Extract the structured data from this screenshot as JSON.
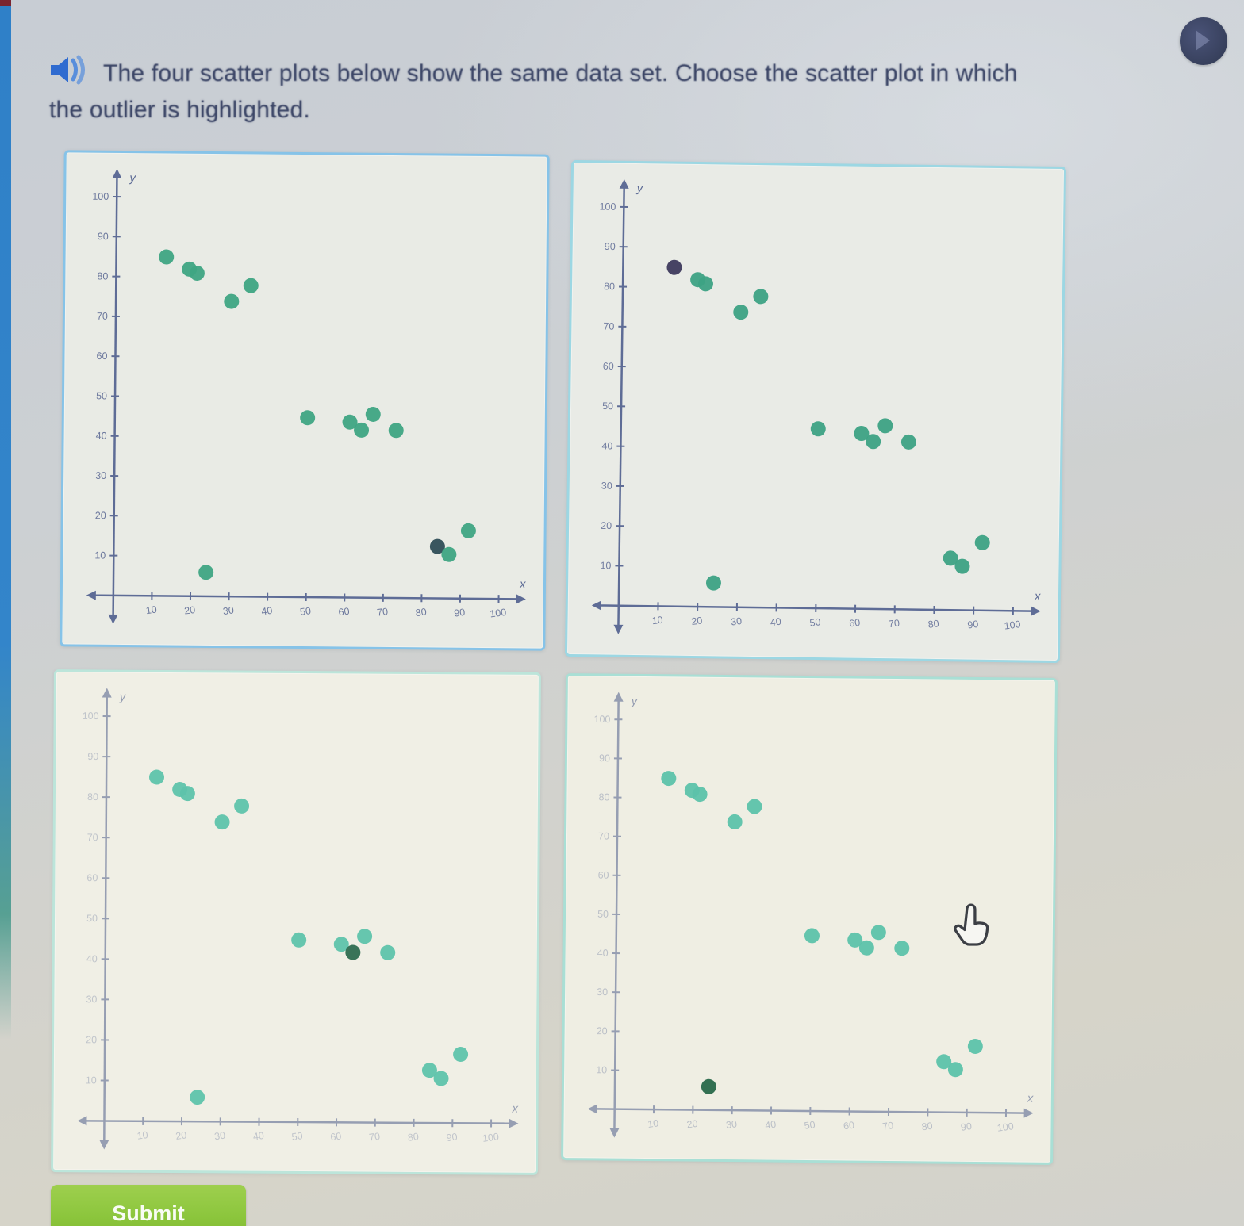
{
  "header": {
    "question_line1": "The four scatter plots below show the same data set. Choose the scatter plot in which",
    "question_line2": "the outlier is highlighted.",
    "audio_icon": "speaker-icon",
    "avatar_icon": "account-circle-icon"
  },
  "footer": {
    "submit_label": "Submit"
  },
  "cursor": {
    "icon": "hand-pointer-icon"
  },
  "colors": {
    "question_text": "#3b4566",
    "left_strip_blue": "#3385ca",
    "submit_green": "#8cc63d",
    "avatar_navy": "#39425f"
  },
  "chart_data": [
    {
      "id": "plot-top-left",
      "type": "scatter",
      "title": "",
      "xlabel": "x",
      "ylabel": "y",
      "xlim": [
        0,
        105
      ],
      "ylim": [
        0,
        105
      ],
      "grid": false,
      "legend": "none",
      "xticks": [
        10,
        20,
        30,
        40,
        50,
        60,
        70,
        80,
        90,
        100
      ],
      "yticks": [
        10,
        20,
        30,
        40,
        50,
        60,
        70,
        80,
        90,
        100
      ],
      "points": [
        [
          13,
          85
        ],
        [
          19,
          82
        ],
        [
          21,
          81
        ],
        [
          30,
          74
        ],
        [
          35,
          78
        ],
        [
          50,
          45
        ],
        [
          61,
          44
        ],
        [
          64,
          42
        ],
        [
          67,
          46
        ],
        [
          73,
          42
        ],
        [
          24,
          6
        ],
        [
          84,
          13
        ],
        [
          87,
          11
        ],
        [
          92,
          17
        ]
      ],
      "outlier_point": [
        24,
        6
      ],
      "highlighted_index": 11,
      "highlighted_point": [
        84,
        13
      ],
      "point_color": "#3fa583",
      "highlight_color": "#2f4e57",
      "axis_color": "#5e6c96",
      "tick_label_color": "#67739a",
      "tick_label_opacity": 0.95,
      "background": "#e9ebe5",
      "border_color": "#86c3e8"
    },
    {
      "id": "plot-top-right",
      "type": "scatter",
      "title": "",
      "xlabel": "x",
      "ylabel": "y",
      "xlim": [
        0,
        105
      ],
      "ylim": [
        0,
        105
      ],
      "grid": false,
      "legend": "none",
      "xticks": [
        10,
        20,
        30,
        40,
        50,
        60,
        70,
        80,
        90,
        100
      ],
      "yticks": [
        10,
        20,
        30,
        40,
        50,
        60,
        70,
        80,
        90,
        100
      ],
      "points": [
        [
          13,
          85
        ],
        [
          19,
          82
        ],
        [
          21,
          81
        ],
        [
          30,
          74
        ],
        [
          35,
          78
        ],
        [
          50,
          45
        ],
        [
          61,
          44
        ],
        [
          64,
          42
        ],
        [
          67,
          46
        ],
        [
          73,
          42
        ],
        [
          24,
          6
        ],
        [
          84,
          13
        ],
        [
          87,
          11
        ],
        [
          92,
          17
        ]
      ],
      "outlier_point": [
        24,
        6
      ],
      "highlighted_index": 0,
      "highlighted_point": [
        13,
        85
      ],
      "point_color": "#3da284",
      "highlight_color": "#3e3a5d",
      "axis_color": "#5e6c96",
      "tick_label_color": "#67739a",
      "tick_label_opacity": 0.9,
      "background": "#e9ebe6",
      "border_color": "#9cd7e3"
    },
    {
      "id": "plot-bottom-left",
      "type": "scatter",
      "title": "",
      "xlabel": "x",
      "ylabel": "y",
      "xlim": [
        0,
        105
      ],
      "ylim": [
        0,
        105
      ],
      "grid": false,
      "legend": "none",
      "xticks": [
        10,
        20,
        30,
        40,
        50,
        60,
        70,
        80,
        90,
        100
      ],
      "yticks": [
        10,
        20,
        30,
        40,
        50,
        60,
        70,
        80,
        90,
        100
      ],
      "points": [
        [
          13,
          85
        ],
        [
          19,
          82
        ],
        [
          21,
          81
        ],
        [
          30,
          74
        ],
        [
          35,
          78
        ],
        [
          50,
          45
        ],
        [
          61,
          44
        ],
        [
          64,
          42
        ],
        [
          67,
          46
        ],
        [
          73,
          42
        ],
        [
          24,
          6
        ],
        [
          84,
          13
        ],
        [
          87,
          11
        ],
        [
          92,
          17
        ]
      ],
      "outlier_point": [
        24,
        6
      ],
      "highlighted_index": 7,
      "highlighted_point": [
        64,
        42
      ],
      "point_color": "#5ec3ab",
      "highlight_color": "#2e6b50",
      "axis_color": "#969eb2",
      "tick_label_color": "#9aa2b6",
      "tick_label_opacity": 0.55,
      "background": "#f0efe5",
      "border_color": "#bce5da"
    },
    {
      "id": "plot-bottom-right",
      "type": "scatter",
      "title": "",
      "xlabel": "x",
      "ylabel": "y",
      "xlim": [
        0,
        105
      ],
      "ylim": [
        0,
        105
      ],
      "grid": false,
      "legend": "none",
      "xticks": [
        10,
        20,
        30,
        40,
        50,
        60,
        70,
        80,
        90,
        100
      ],
      "yticks": [
        10,
        20,
        30,
        40,
        50,
        60,
        70,
        80,
        90,
        100
      ],
      "points": [
        [
          13,
          85
        ],
        [
          19,
          82
        ],
        [
          21,
          81
        ],
        [
          30,
          74
        ],
        [
          35,
          78
        ],
        [
          50,
          45
        ],
        [
          61,
          44
        ],
        [
          64,
          42
        ],
        [
          67,
          46
        ],
        [
          73,
          42
        ],
        [
          24,
          6
        ],
        [
          84,
          13
        ],
        [
          87,
          11
        ],
        [
          92,
          17
        ]
      ],
      "outlier_point": [
        24,
        6
      ],
      "highlighted_index": 10,
      "highlighted_point": [
        24,
        6
      ],
      "point_color": "#5cc2aa",
      "highlight_color": "#28684a",
      "axis_color": "#969eb2",
      "tick_label_color": "#9aa2b6",
      "tick_label_opacity": 0.6,
      "background": "#efeee3",
      "border_color": "#a9dfd5"
    }
  ]
}
